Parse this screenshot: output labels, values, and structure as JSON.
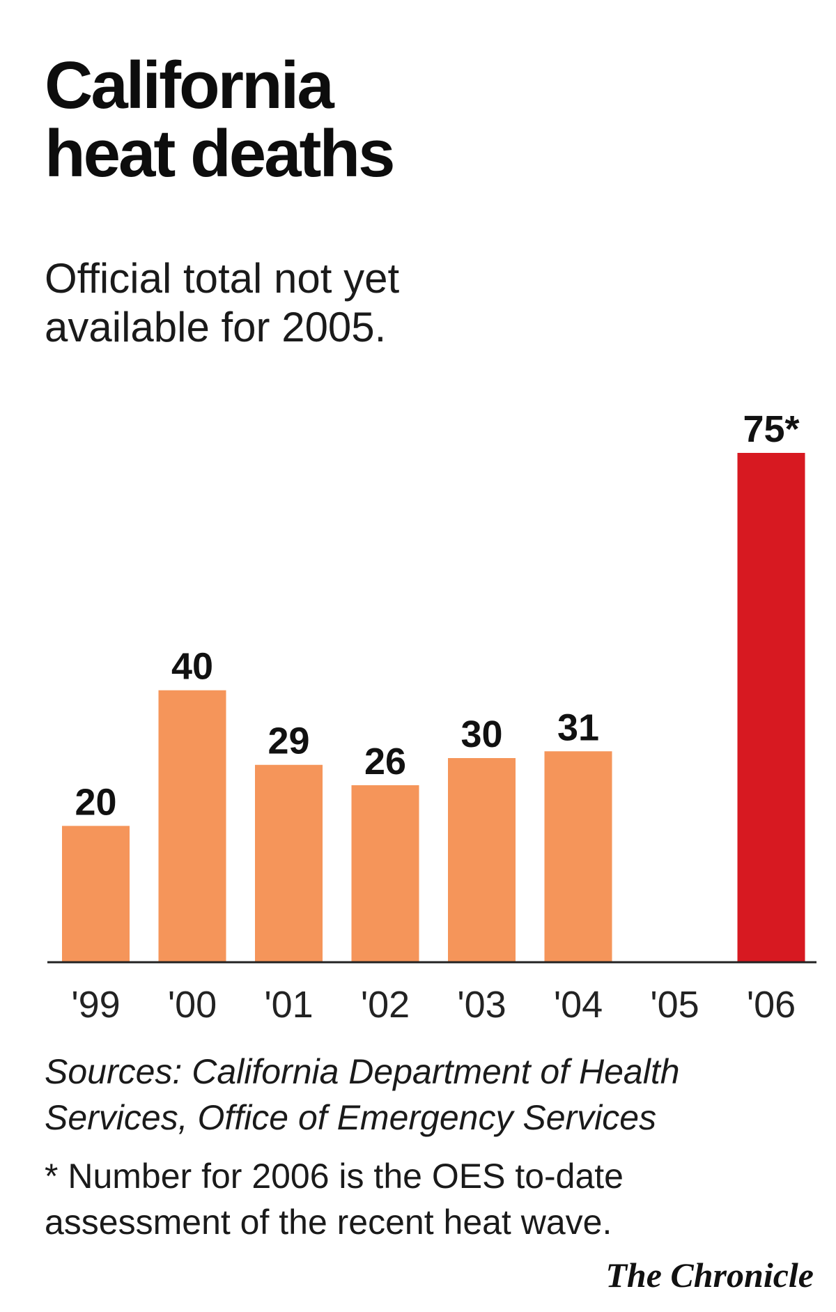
{
  "header": {
    "title": "California\nheat deaths",
    "subtitle": "Official total not yet\navailable for 2005."
  },
  "colors": {
    "bar": "#f5955a",
    "highlight": "#d71921",
    "text": "#111111",
    "axis": "#222222"
  },
  "chart_data": {
    "type": "bar",
    "categories": [
      "'99",
      "'00",
      "'01",
      "'02",
      "'03",
      "'04",
      "'05",
      "'06"
    ],
    "values": [
      20,
      40,
      29,
      26,
      30,
      31,
      null,
      75
    ],
    "value_labels": [
      "20",
      "40",
      "29",
      "26",
      "30",
      "31",
      "",
      "75*"
    ],
    "highlight_index": 7,
    "title": "California heat deaths",
    "subtitle": "Official total not yet available for 2005.",
    "xlabel": "",
    "ylabel": "",
    "ylim": [
      0,
      75
    ],
    "grid": false,
    "legend": "none"
  },
  "footer": {
    "sources": "Sources: California Department of Health\nServices, Office of Emergency Services",
    "footnote": "* Number for 2006 is the OES to-date\nassessment of the recent heat wave.",
    "credit": "The Chronicle"
  }
}
